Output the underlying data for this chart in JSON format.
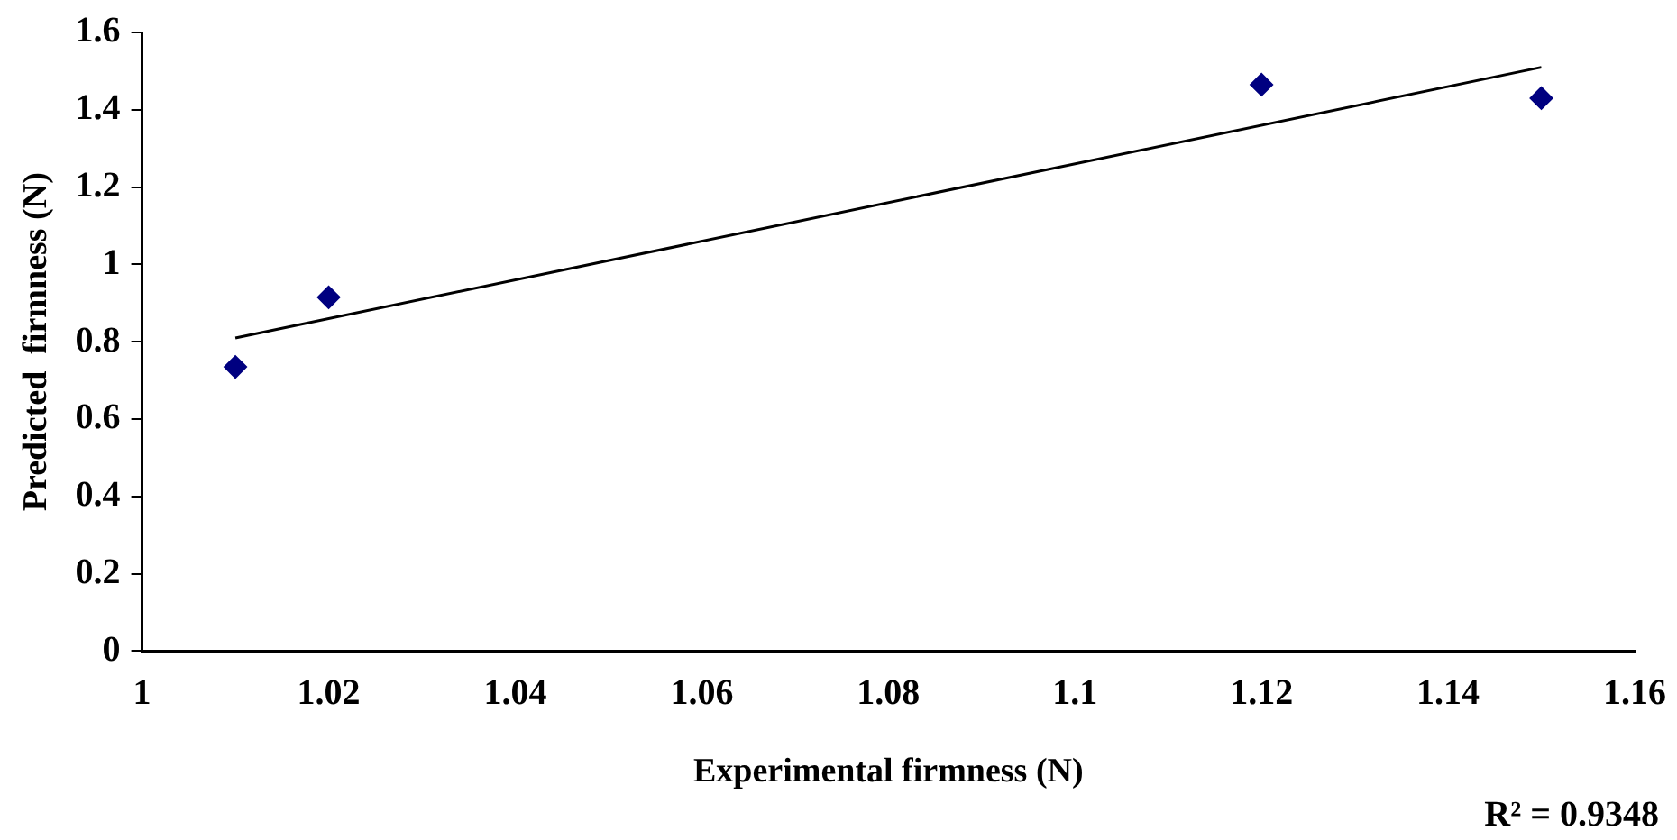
{
  "chart_data": {
    "type": "scatter",
    "xlabel": "Experimental firmness (N)",
    "ylabel": "Predicted  firmness (N)",
    "xlim": [
      1,
      1.16
    ],
    "xticks": [
      1,
      1.02,
      1.04,
      1.06,
      1.08,
      1.1,
      1.12,
      1.14,
      1.16
    ],
    "ylim": [
      0,
      1.6
    ],
    "yticks": [
      0,
      0.2,
      0.4,
      0.6,
      0.8,
      1,
      1.2,
      1.4,
      1.6
    ],
    "grid": false,
    "legend": false,
    "marker": "diamond",
    "series": [
      {
        "type": "scatter",
        "color": "#000080",
        "x": [
          1.01,
          1.02,
          1.12,
          1.15
        ],
        "values": [
          0.735,
          0.915,
          1.465,
          1.43
        ]
      },
      {
        "type": "line",
        "color": "#000000",
        "x": [
          1.01,
          1.15
        ],
        "values": [
          0.81,
          1.51
        ],
        "marker": "none"
      }
    ],
    "annotations": [
      "R² = 0.9348"
    ]
  }
}
